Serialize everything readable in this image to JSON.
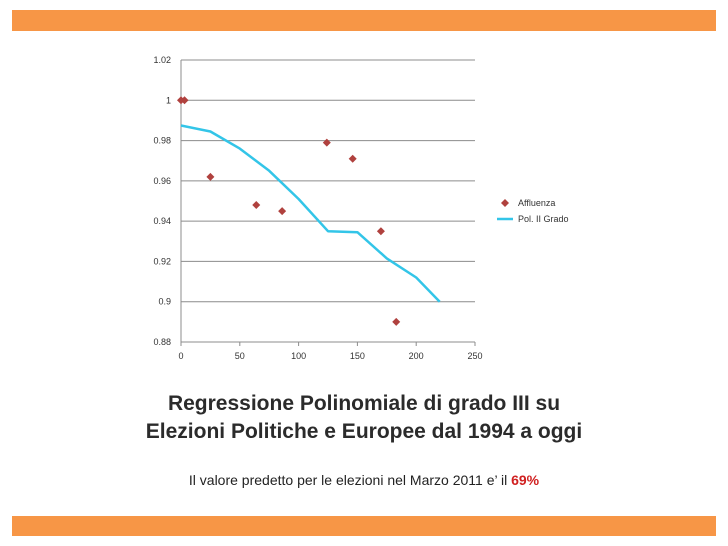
{
  "slide": {
    "title_line1": "Regressione Polinomiale di grado III su",
    "title_line2": "Elezioni Politiche e Europee dal 1994 a oggi",
    "subtitle_text": "Il valore predetto per le elezioni nel Marzo 2011 e’ il ",
    "subtitle_value": "69%",
    "accent_color": "#f79646",
    "highlight_color": "#d02020"
  },
  "chart_data": {
    "type": "scatter",
    "title": "",
    "xlabel": "",
    "ylabel": "",
    "xlim": [
      0,
      250
    ],
    "ylim": [
      0.88,
      1.02
    ],
    "xticks": [
      0,
      50,
      100,
      150,
      200,
      250
    ],
    "yticks": [
      {
        "value": 0.88,
        "label": "0.88"
      },
      {
        "value": 0.9,
        "label": "0.9"
      },
      {
        "value": 0.92,
        "label": "0.92"
      },
      {
        "value": 0.94,
        "label": "0.94"
      },
      {
        "value": 0.96,
        "label": "0.96"
      },
      {
        "value": 0.98,
        "label": "0.98"
      },
      {
        "value": 1.0,
        "label": "1"
      },
      {
        "value": 1.02,
        "label": "1.02"
      }
    ],
    "grid": "horizontal",
    "legend": "right",
    "series": [
      {
        "name": "Affluenza",
        "kind": "scatter",
        "color": "#b0413e",
        "marker": "diamond",
        "points": [
          {
            "x": 0,
            "y": 1.0
          },
          {
            "x": 3,
            "y": 1.0
          },
          {
            "x": 25,
            "y": 0.962
          },
          {
            "x": 64,
            "y": 0.948
          },
          {
            "x": 86,
            "y": 0.945
          },
          {
            "x": 124,
            "y": 0.979
          },
          {
            "x": 146,
            "y": 0.971
          },
          {
            "x": 170,
            "y": 0.935
          },
          {
            "x": 183,
            "y": 0.89
          }
        ]
      },
      {
        "name": "Pol. II Grado",
        "kind": "line",
        "color": "#33c5e8",
        "points": [
          {
            "x": 0,
            "y": 0.9875
          },
          {
            "x": 25,
            "y": 0.9845
          },
          {
            "x": 50,
            "y": 0.976
          },
          {
            "x": 75,
            "y": 0.965
          },
          {
            "x": 100,
            "y": 0.951
          },
          {
            "x": 125,
            "y": 0.935
          },
          {
            "x": 150,
            "y": 0.9345
          },
          {
            "x": 175,
            "y": 0.9215
          },
          {
            "x": 200,
            "y": 0.912
          },
          {
            "x": 220,
            "y": 0.9
          }
        ]
      }
    ]
  }
}
